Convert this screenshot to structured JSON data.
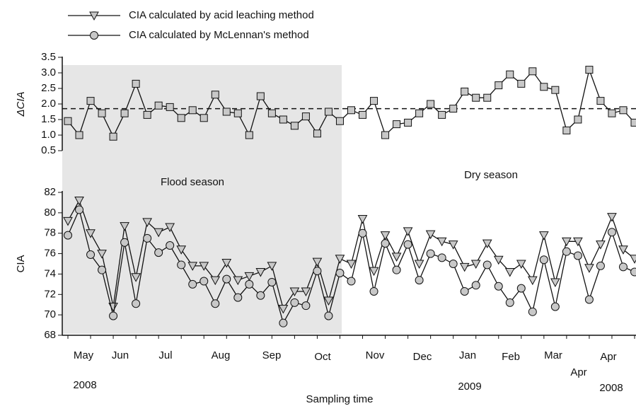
{
  "chart_data": [
    {
      "type": "line",
      "ylabel": "ΔCIA",
      "ylim": [
        0.5,
        3.5
      ],
      "yticks": [
        0.5,
        {
          "value": 1,
          "label": "1.0"
        },
        1.5,
        {
          "value": 2,
          "label": "2.0"
        },
        2.5,
        {
          "value": 3,
          "label": "3.0"
        },
        3.5
      ],
      "hline": 1.85,
      "annotations": [
        "Flood season",
        "Dry season"
      ],
      "series": [
        {
          "color": "#c8c8c8",
          "marker": "square",
          "values": [
            1.45,
            1.0,
            2.1,
            1.7,
            0.95,
            1.7,
            2.65,
            1.65,
            1.95,
            1.9,
            1.55,
            1.8,
            1.55,
            2.3,
            1.75,
            1.7,
            1.0,
            2.25,
            1.7,
            1.5,
            1.3,
            1.6,
            1.05,
            1.75,
            1.45,
            1.8,
            1.65,
            2.1,
            1.0,
            1.35,
            1.4,
            1.7,
            2.0,
            1.65,
            1.85,
            2.4,
            2.2,
            2.2,
            2.6,
            2.95,
            2.65,
            3.05,
            2.55,
            2.45,
            1.15,
            1.5,
            3.1,
            2.1,
            1.7,
            1.8,
            1.4
          ]
        }
      ]
    },
    {
      "type": "line",
      "ylabel": "CIA",
      "xlabel": "Sampling time",
      "ylim": [
        68,
        82
      ],
      "yticks": [
        68,
        70,
        72,
        74,
        76,
        78,
        80,
        82
      ],
      "x_labels": [
        "May",
        "Jun",
        "Jul",
        "Aug",
        "Sep",
        "Oct",
        "Nov",
        "Dec",
        "Jan",
        "Feb",
        "Mar",
        "Apr",
        "Apr"
      ],
      "years": [
        "2008",
        "2009",
        "2008"
      ],
      "series": [
        {
          "name": "CIA calculated by acid leaching method",
          "color": "#c8c8c8",
          "marker": "triangle-down",
          "values": [
            79.2,
            81.2,
            78,
            76,
            70.8,
            78.7,
            73.7,
            79.1,
            78.1,
            78.6,
            76.4,
            74.8,
            74.8,
            73.4,
            75.1,
            73.4,
            73.8,
            74.2,
            74.8,
            70.6,
            72.3,
            72.3,
            75.2,
            71.4,
            75.5,
            75,
            79.4,
            74.3,
            77.8,
            75.7,
            78.2,
            75,
            77.9,
            77.2,
            76.9,
            74.7,
            75,
            77,
            75.4,
            74.2,
            75,
            73.4,
            77.8,
            73.2,
            77.2,
            77.2,
            74.6,
            76.9,
            79.6,
            76.4,
            75.5
          ]
        },
        {
          "name": "CIA calculated by McLennan's method",
          "color": "#c8c8c8",
          "marker": "circle",
          "values": [
            77.8,
            80.3,
            75.9,
            74.4,
            69.9,
            77.1,
            71.1,
            77.5,
            76.1,
            76.8,
            74.9,
            73,
            73.3,
            71.1,
            73.5,
            71.7,
            73,
            71.9,
            73.2,
            69.2,
            71.2,
            70.9,
            74.3,
            69.9,
            74.1,
            73.3,
            78,
            72.3,
            77,
            74.4,
            76.9,
            73.4,
            76,
            75.6,
            75,
            72.3,
            72.9,
            74.9,
            72.8,
            71.2,
            72.6,
            70.3,
            75.4,
            70.8,
            76.2,
            75.8,
            71.5,
            74.8,
            78.1,
            74.7,
            74.2
          ]
        }
      ]
    }
  ]
}
